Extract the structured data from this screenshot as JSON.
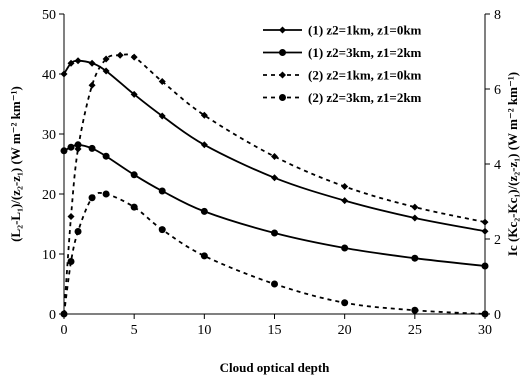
{
  "chart_data": {
    "type": "line",
    "xlabel": "Cloud optical depth",
    "ylabel_left": "(L₂-L₁)/(z₂-z₁) (W m⁻² km⁻¹)",
    "ylabel_right": "Ic (Kc₂-Kc₁)/(z₂-z₁) (W m⁻² km⁻¹)",
    "xlim": [
      0,
      30
    ],
    "ylim_left": [
      0,
      50
    ],
    "ylim_right": [
      0,
      8
    ],
    "x_ticks": [
      0,
      5,
      10,
      15,
      20,
      25,
      30
    ],
    "y_left_ticks": [
      0,
      10,
      20,
      30,
      40,
      50
    ],
    "y_right_ticks": [
      0,
      2,
      4,
      6,
      8
    ],
    "legend_position": "top-right",
    "series": [
      {
        "name": "(1) z2=1km, z1=0km",
        "axis": "left",
        "line": "solid",
        "marker": "diamond",
        "color": "#000000",
        "x": [
          0,
          0.5,
          1,
          2,
          3,
          5,
          7,
          10,
          15,
          20,
          25,
          30
        ],
        "y": [
          40,
          41.8,
          42.2,
          41.8,
          40.5,
          36.6,
          33,
          28.2,
          22.7,
          18.9,
          16,
          13.8
        ]
      },
      {
        "name": "(1) z2=3km, z1=2km",
        "axis": "left",
        "line": "solid",
        "marker": "circle",
        "color": "#000000",
        "x": [
          0,
          0.5,
          1,
          2,
          3,
          5,
          7,
          10,
          15,
          20,
          25,
          30
        ],
        "y": [
          27.2,
          27.8,
          28.2,
          27.6,
          26.3,
          23.2,
          20.5,
          17.1,
          13.5,
          11,
          9.3,
          8
        ]
      },
      {
        "name": "(2) z2=1km, z1=0km",
        "axis": "right",
        "line": "dashed",
        "marker": "diamond",
        "color": "#000000",
        "x": [
          0,
          0.5,
          1,
          2,
          3,
          4,
          5,
          7,
          10,
          15,
          20,
          25,
          30
        ],
        "y": [
          0,
          2.6,
          4.4,
          6.1,
          6.8,
          6.9,
          6.85,
          6.2,
          5.3,
          4.2,
          3.4,
          2.85,
          2.45
        ]
      },
      {
        "name": "(2) z2=3km, z1=2km",
        "axis": "right",
        "line": "dashed",
        "marker": "circle",
        "color": "#000000",
        "x": [
          0,
          0.5,
          1,
          2,
          3,
          5,
          7,
          10,
          15,
          20,
          25,
          30
        ],
        "y": [
          0,
          1.4,
          2.2,
          3.1,
          3.2,
          2.85,
          2.25,
          1.55,
          0.8,
          0.3,
          0.1,
          0
        ]
      }
    ]
  }
}
